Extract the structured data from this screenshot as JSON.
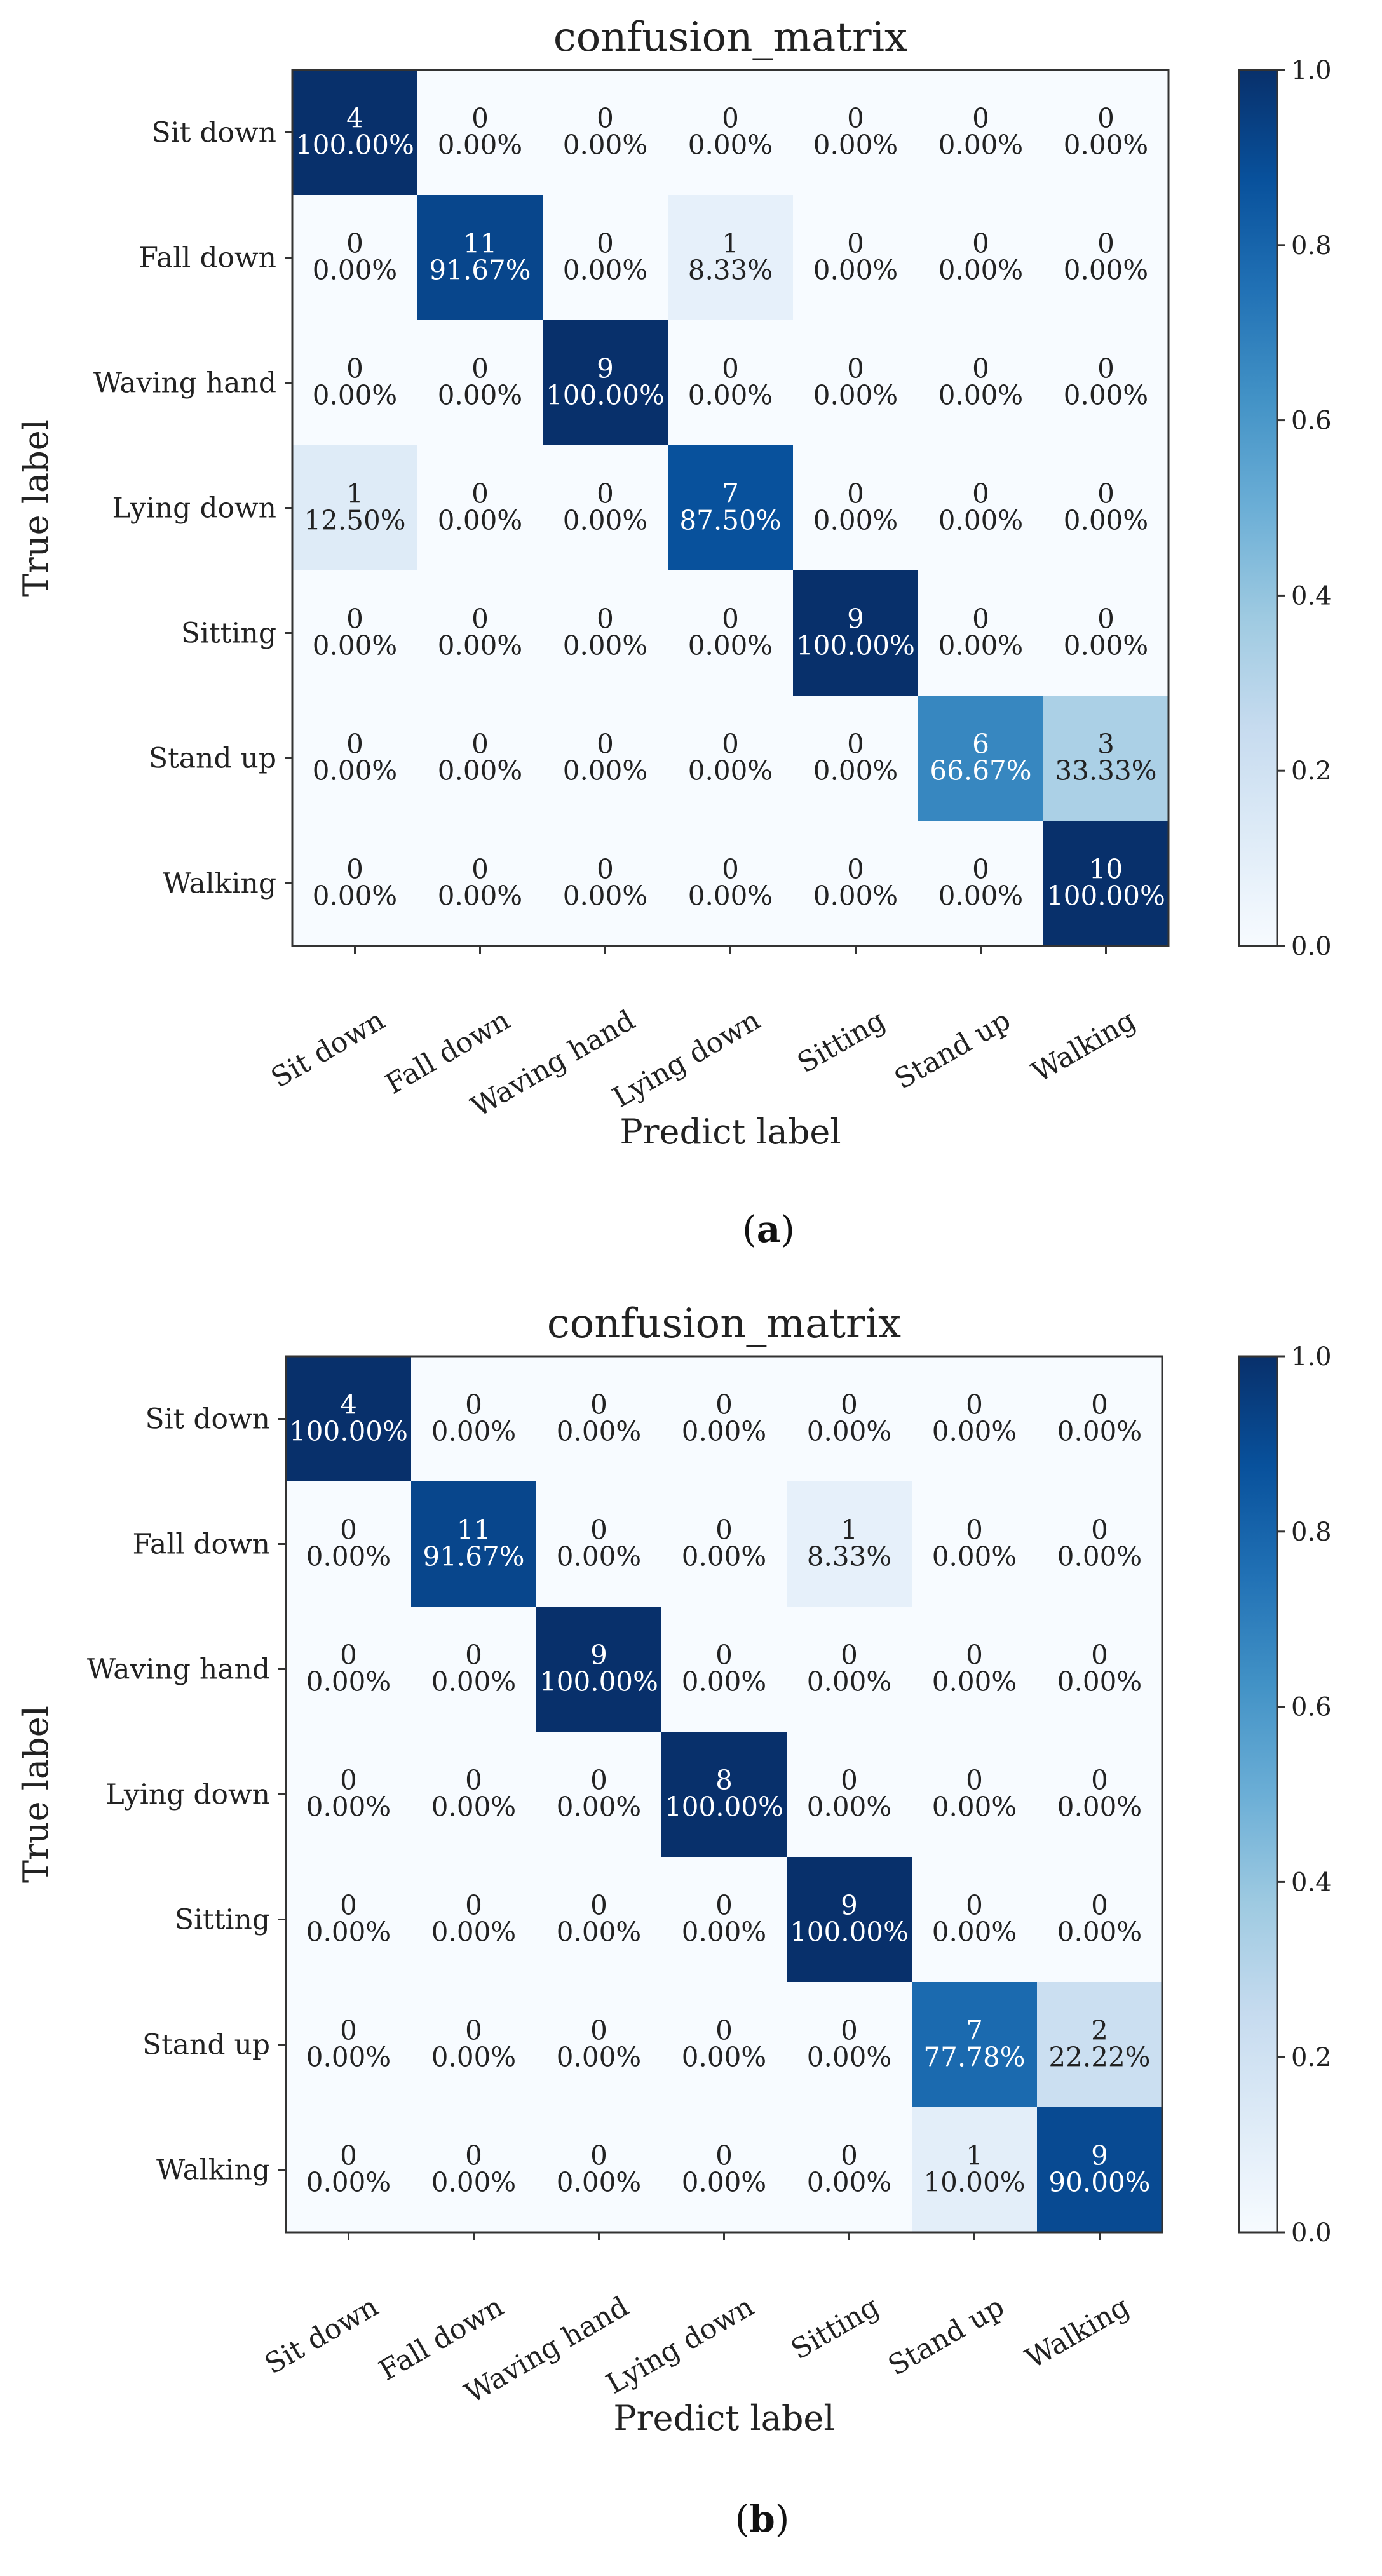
{
  "chart_data": [
    {
      "type": "heatmap",
      "panel": "a",
      "caption_pre": "(",
      "caption_letter": "a",
      "caption_post": ")",
      "title": "confusion_matrix",
      "xlabel": "Predict label",
      "ylabel": "True label",
      "x_categories": [
        "Sit down",
        "Fall down",
        "Waving hand",
        "Lying down",
        "Sitting",
        "Stand up",
        "Walking"
      ],
      "y_categories": [
        "Sit down",
        "Fall down",
        "Waving hand",
        "Lying down",
        "Sitting",
        "Stand up",
        "Walking"
      ],
      "counts": [
        [
          4,
          0,
          0,
          0,
          0,
          0,
          0
        ],
        [
          0,
          11,
          0,
          1,
          0,
          0,
          0
        ],
        [
          0,
          0,
          9,
          0,
          0,
          0,
          0
        ],
        [
          1,
          0,
          0,
          7,
          0,
          0,
          0
        ],
        [
          0,
          0,
          0,
          0,
          9,
          0,
          0
        ],
        [
          0,
          0,
          0,
          0,
          0,
          6,
          3
        ],
        [
          0,
          0,
          0,
          0,
          0,
          0,
          10
        ]
      ],
      "percents": [
        [
          "100.00%",
          "0.00%",
          "0.00%",
          "0.00%",
          "0.00%",
          "0.00%",
          "0.00%"
        ],
        [
          "0.00%",
          "91.67%",
          "0.00%",
          "8.33%",
          "0.00%",
          "0.00%",
          "0.00%"
        ],
        [
          "0.00%",
          "0.00%",
          "100.00%",
          "0.00%",
          "0.00%",
          "0.00%",
          "0.00%"
        ],
        [
          "12.50%",
          "0.00%",
          "0.00%",
          "87.50%",
          "0.00%",
          "0.00%",
          "0.00%"
        ],
        [
          "0.00%",
          "0.00%",
          "0.00%",
          "0.00%",
          "100.00%",
          "0.00%",
          "0.00%"
        ],
        [
          "0.00%",
          "0.00%",
          "0.00%",
          "0.00%",
          "0.00%",
          "66.67%",
          "33.33%"
        ],
        [
          "0.00%",
          "0.00%",
          "0.00%",
          "0.00%",
          "0.00%",
          "0.00%",
          "100.00%"
        ]
      ],
      "values": [
        [
          1.0,
          0,
          0,
          0,
          0,
          0,
          0
        ],
        [
          0,
          0.9167,
          0,
          0.0833,
          0,
          0,
          0
        ],
        [
          0,
          0,
          1.0,
          0,
          0,
          0,
          0
        ],
        [
          0.125,
          0,
          0,
          0.875,
          0,
          0,
          0
        ],
        [
          0,
          0,
          0,
          0,
          1.0,
          0,
          0
        ],
        [
          0,
          0,
          0,
          0,
          0,
          0.6667,
          0.3333
        ],
        [
          0,
          0,
          0,
          0,
          0,
          0,
          1.0
        ]
      ],
      "colorbar": {
        "range": [
          0.0,
          1.0
        ],
        "ticks": [
          "0.0",
          "0.2",
          "0.4",
          "0.6",
          "0.8",
          "1.0"
        ],
        "colormap": "Blues"
      }
    },
    {
      "type": "heatmap",
      "panel": "b",
      "caption_pre": "(",
      "caption_letter": "b",
      "caption_post": ")",
      "title": "confusion_matrix",
      "xlabel": "Predict label",
      "ylabel": "True label",
      "x_categories": [
        "Sit down",
        "Fall down",
        "Waving hand",
        "Lying down",
        "Sitting",
        "Stand up",
        "Walking"
      ],
      "y_categories": [
        "Sit down",
        "Fall down",
        "Waving hand",
        "Lying down",
        "Sitting",
        "Stand up",
        "Walking"
      ],
      "counts": [
        [
          4,
          0,
          0,
          0,
          0,
          0,
          0
        ],
        [
          0,
          11,
          0,
          0,
          1,
          0,
          0
        ],
        [
          0,
          0,
          9,
          0,
          0,
          0,
          0
        ],
        [
          0,
          0,
          0,
          8,
          0,
          0,
          0
        ],
        [
          0,
          0,
          0,
          0,
          9,
          0,
          0
        ],
        [
          0,
          0,
          0,
          0,
          0,
          7,
          2
        ],
        [
          0,
          0,
          0,
          0,
          0,
          1,
          9
        ]
      ],
      "percents": [
        [
          "100.00%",
          "0.00%",
          "0.00%",
          "0.00%",
          "0.00%",
          "0.00%",
          "0.00%"
        ],
        [
          "0.00%",
          "91.67%",
          "0.00%",
          "0.00%",
          "8.33%",
          "0.00%",
          "0.00%"
        ],
        [
          "0.00%",
          "0.00%",
          "100.00%",
          "0.00%",
          "0.00%",
          "0.00%",
          "0.00%"
        ],
        [
          "0.00%",
          "0.00%",
          "0.00%",
          "100.00%",
          "0.00%",
          "0.00%",
          "0.00%"
        ],
        [
          "0.00%",
          "0.00%",
          "0.00%",
          "0.00%",
          "100.00%",
          "0.00%",
          "0.00%"
        ],
        [
          "0.00%",
          "0.00%",
          "0.00%",
          "0.00%",
          "0.00%",
          "77.78%",
          "22.22%"
        ],
        [
          "0.00%",
          "0.00%",
          "0.00%",
          "0.00%",
          "0.00%",
          "10.00%",
          "90.00%"
        ]
      ],
      "values": [
        [
          1.0,
          0,
          0,
          0,
          0,
          0,
          0
        ],
        [
          0,
          0.9167,
          0,
          0,
          0.0833,
          0,
          0
        ],
        [
          0,
          0,
          1.0,
          0,
          0,
          0,
          0
        ],
        [
          0,
          0,
          0,
          1.0,
          0,
          0,
          0
        ],
        [
          0,
          0,
          0,
          0,
          1.0,
          0,
          0
        ],
        [
          0,
          0,
          0,
          0,
          0,
          0.7778,
          0.2222
        ],
        [
          0,
          0,
          0,
          0,
          0,
          0.1,
          0.9
        ]
      ],
      "colorbar": {
        "range": [
          0.0,
          1.0
        ],
        "ticks": [
          "0.0",
          "0.2",
          "0.4",
          "0.6",
          "0.8",
          "1.0"
        ],
        "colormap": "Blues"
      }
    }
  ]
}
